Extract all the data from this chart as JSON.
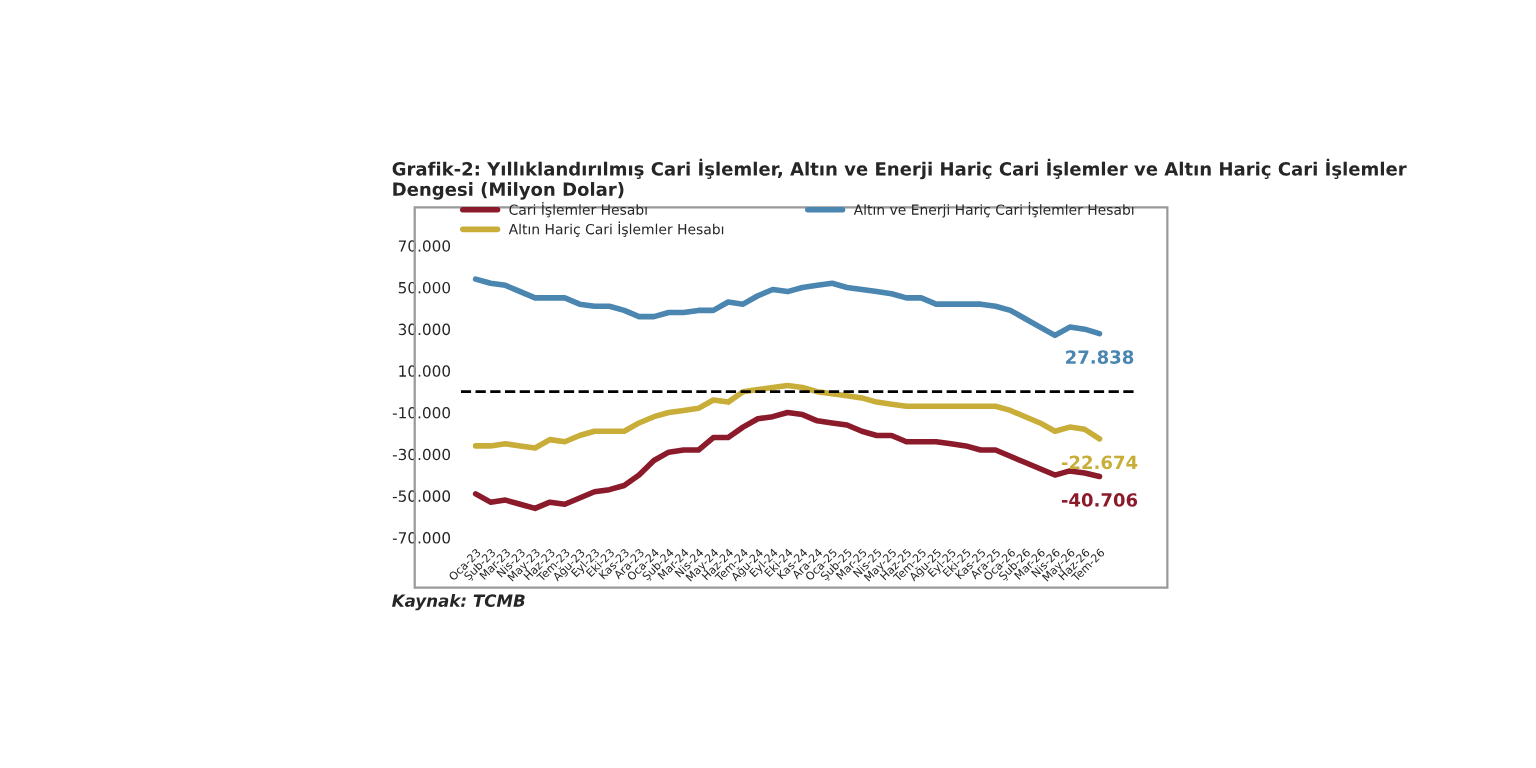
{
  "chart_data": {
    "type": "line",
    "title": "Grafik-2: Yıllıklandırılmış Cari İşlemler, Altın ve Enerji Hariç Cari İşlemler ve Altın Hariç Cari İşlemler Dengesi (Milyon Dolar)",
    "categories": [
      "Oca-23",
      "Şub-23",
      "Mar-23",
      "Nis-23",
      "May-23",
      "Haz-23",
      "Tem-23",
      "Ağu-23",
      "Eyl-23",
      "Eki-23",
      "Kas-23",
      "Ara-23",
      "Oca-24",
      "Şub-24",
      "Mar-24",
      "Nis-24",
      "May-24",
      "Haz-24",
      "Tem-24",
      "Ağu-24",
      "Eyl-24",
      "Eki-24",
      "Kas-24",
      "Ara-24",
      "Oca-25",
      "Şub-25",
      "Mar-25",
      "Nis-25",
      "May-25",
      "Haz-25",
      "Tem-25",
      "Ağu-25",
      "Eyl-25",
      "Eki-25",
      "Kas-25",
      "Ara-25",
      "Oca-26",
      "Şub-26",
      "Mar-26",
      "Nis-26",
      "May-26",
      "Haz-26",
      "Tem-26"
    ],
    "series": [
      {
        "name": "Cari İşlemler Hesabı",
        "color": "#8b1a2b",
        "values": [
          -49000,
          -53000,
          -52000,
          -54000,
          -56000,
          -53000,
          -54000,
          -51000,
          -48000,
          -47000,
          -45000,
          -40000,
          -33000,
          -29000,
          -28000,
          -28000,
          -22000,
          -22000,
          -17000,
          -13000,
          -12000,
          -10000,
          -11000,
          -14000,
          -15000,
          -16000,
          -19000,
          -21000,
          -21000,
          -24000,
          -24000,
          -24000,
          -25000,
          -26000,
          -28000,
          -28000,
          -31000,
          -34000,
          -37000,
          -40000,
          -38000,
          -39000,
          -40706
        ],
        "value_labels": [
          null,
          null,
          null,
          null,
          null,
          null,
          null,
          null,
          null,
          null,
          null,
          null,
          null,
          null,
          null,
          null,
          null,
          null,
          null,
          null,
          null,
          null,
          null,
          null,
          null,
          null,
          null,
          null,
          null,
          null,
          null,
          null,
          null,
          null,
          null,
          null,
          null,
          null,
          null,
          null,
          null,
          null,
          "-40.706"
        ]
      },
      {
        "name": "Altın Hariç Cari İşlemler Hesabı",
        "color": "#c8ad38",
        "values": [
          -26000,
          -26000,
          -25000,
          -26000,
          -27000,
          -23000,
          -24000,
          -21000,
          -19000,
          -19000,
          -19000,
          -15000,
          -12000,
          -10000,
          -9000,
          -8000,
          -4000,
          -5000,
          0,
          1000,
          2000,
          3000,
          2000,
          0,
          -1000,
          -2000,
          -3000,
          -5000,
          -6000,
          -7000,
          -7000,
          -7000,
          -7000,
          -7000,
          -7000,
          -7000,
          -9000,
          -12000,
          -15000,
          -19000,
          -17000,
          -18000,
          -22674
        ],
        "value_labels": [
          null,
          null,
          null,
          null,
          null,
          null,
          null,
          null,
          null,
          null,
          null,
          null,
          null,
          null,
          null,
          null,
          null,
          null,
          null,
          null,
          null,
          null,
          null,
          null,
          null,
          null,
          null,
          null,
          null,
          null,
          null,
          null,
          null,
          null,
          null,
          null,
          null,
          null,
          null,
          null,
          null,
          null,
          "-22.674"
        ]
      },
      {
        "name": "Altın ve Enerji Hariç Cari İşlemler Hesabı",
        "color": "#4a86b0",
        "values": [
          54000,
          52000,
          51000,
          48000,
          45000,
          45000,
          45000,
          42000,
          41000,
          41000,
          39000,
          36000,
          36000,
          38000,
          38000,
          39000,
          39000,
          43000,
          42000,
          46000,
          49000,
          48000,
          50000,
          51000,
          52000,
          50000,
          49000,
          48000,
          47000,
          45000,
          45000,
          42000,
          42000,
          42000,
          42000,
          41000,
          39000,
          35000,
          31000,
          27000,
          31000,
          30000,
          27838
        ],
        "value_labels": [
          null,
          null,
          null,
          null,
          null,
          null,
          null,
          null,
          null,
          null,
          null,
          null,
          null,
          null,
          null,
          null,
          null,
          null,
          null,
          null,
          null,
          null,
          null,
          null,
          null,
          null,
          null,
          null,
          null,
          null,
          null,
          null,
          null,
          null,
          null,
          null,
          null,
          null,
          null,
          null,
          null,
          null,
          "27.838"
        ]
      }
    ],
    "ylim": [
      -70000,
      70000
    ],
    "yticks": [
      {
        "value": -70000,
        "label": "-70.000"
      },
      {
        "value": -50000,
        "label": "-50.000"
      },
      {
        "value": -30000,
        "label": "-30.000"
      },
      {
        "value": -10000,
        "label": "-10.000"
      },
      {
        "value": 10000,
        "label": "10.000"
      },
      {
        "value": 30000,
        "label": "30.000"
      },
      {
        "value": 50000,
        "label": "50.000"
      },
      {
        "value": 70000,
        "label": "70.000"
      }
    ],
    "ref_lines": [
      {
        "axis": "y",
        "value": 0,
        "color": "#000000",
        "line_style": "dashed"
      }
    ],
    "grid": false,
    "legend": "top",
    "marker": "none",
    "line_style": "solid",
    "annotations": [
      "Kaynak: TCMB"
    ]
  }
}
